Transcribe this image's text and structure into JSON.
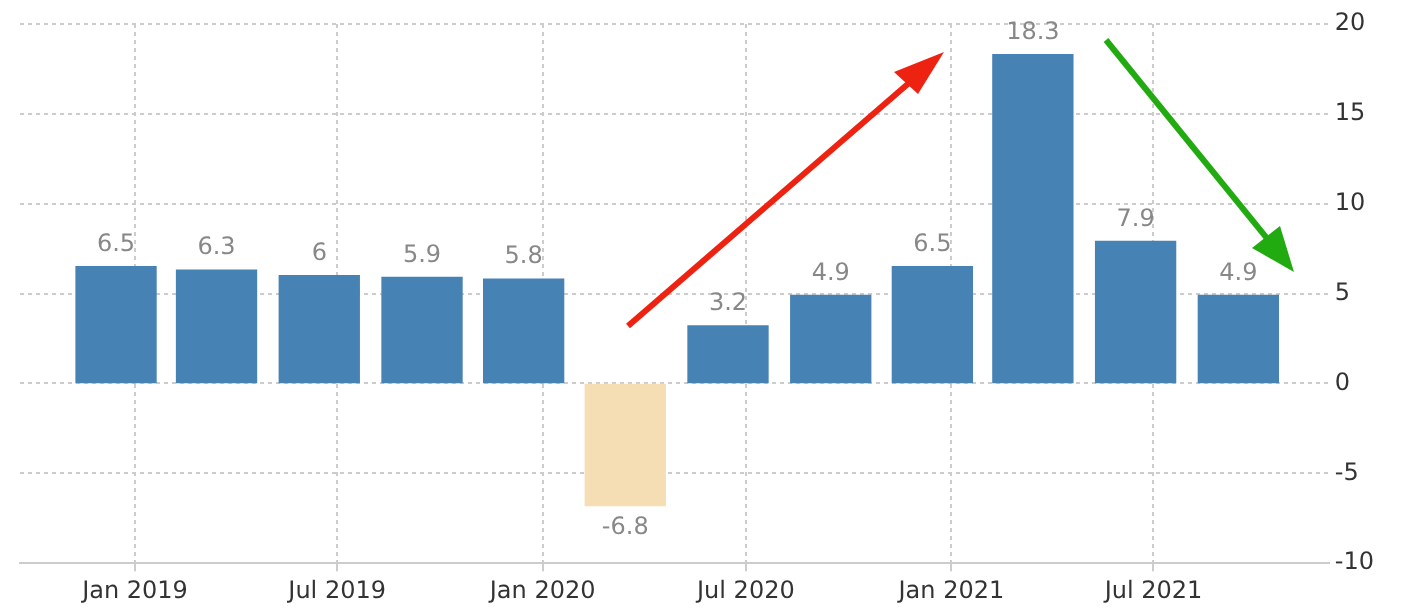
{
  "chart_data": {
    "type": "bar",
    "x": [
      "2018-12-15",
      "2019-03-15",
      "2019-06-15",
      "2019-09-15",
      "2019-12-15",
      "2020-03-15",
      "2020-06-15",
      "2020-09-15",
      "2020-12-15",
      "2021-03-15",
      "2021-06-15",
      "2021-09-15"
    ],
    "values": [
      6.5,
      6.3,
      6,
      5.9,
      5.8,
      -6.8,
      3.2,
      4.9,
      6.5,
      18.3,
      7.9,
      4.9
    ],
    "colors": [
      "#4682b4",
      "#4682b4",
      "#4682b4",
      "#4682b4",
      "#4682b4",
      "#f5deb3",
      "#4682b4",
      "#4682b4",
      "#4682b4",
      "#4682b4",
      "#4682b4",
      "#4682b4"
    ],
    "xlim": [
      "2018-09-20",
      "2021-12-05"
    ],
    "xticks": [
      {
        "value": "2019-01-01",
        "label": "Jan 2019"
      },
      {
        "value": "2019-07-01",
        "label": "Jul 2019"
      },
      {
        "value": "2020-01-01",
        "label": "Jan 2020"
      },
      {
        "value": "2020-07-01",
        "label": "Jul 2020"
      },
      {
        "value": "2021-01-01",
        "label": "Jan 2021"
      },
      {
        "value": "2021-07-01",
        "label": "Jul 2021"
      }
    ],
    "ylim": [
      -10,
      20
    ],
    "yticks": [
      -10,
      -5,
      0,
      5,
      10,
      15,
      20
    ],
    "grid": true,
    "data_labels": true,
    "legend": false
  }
}
